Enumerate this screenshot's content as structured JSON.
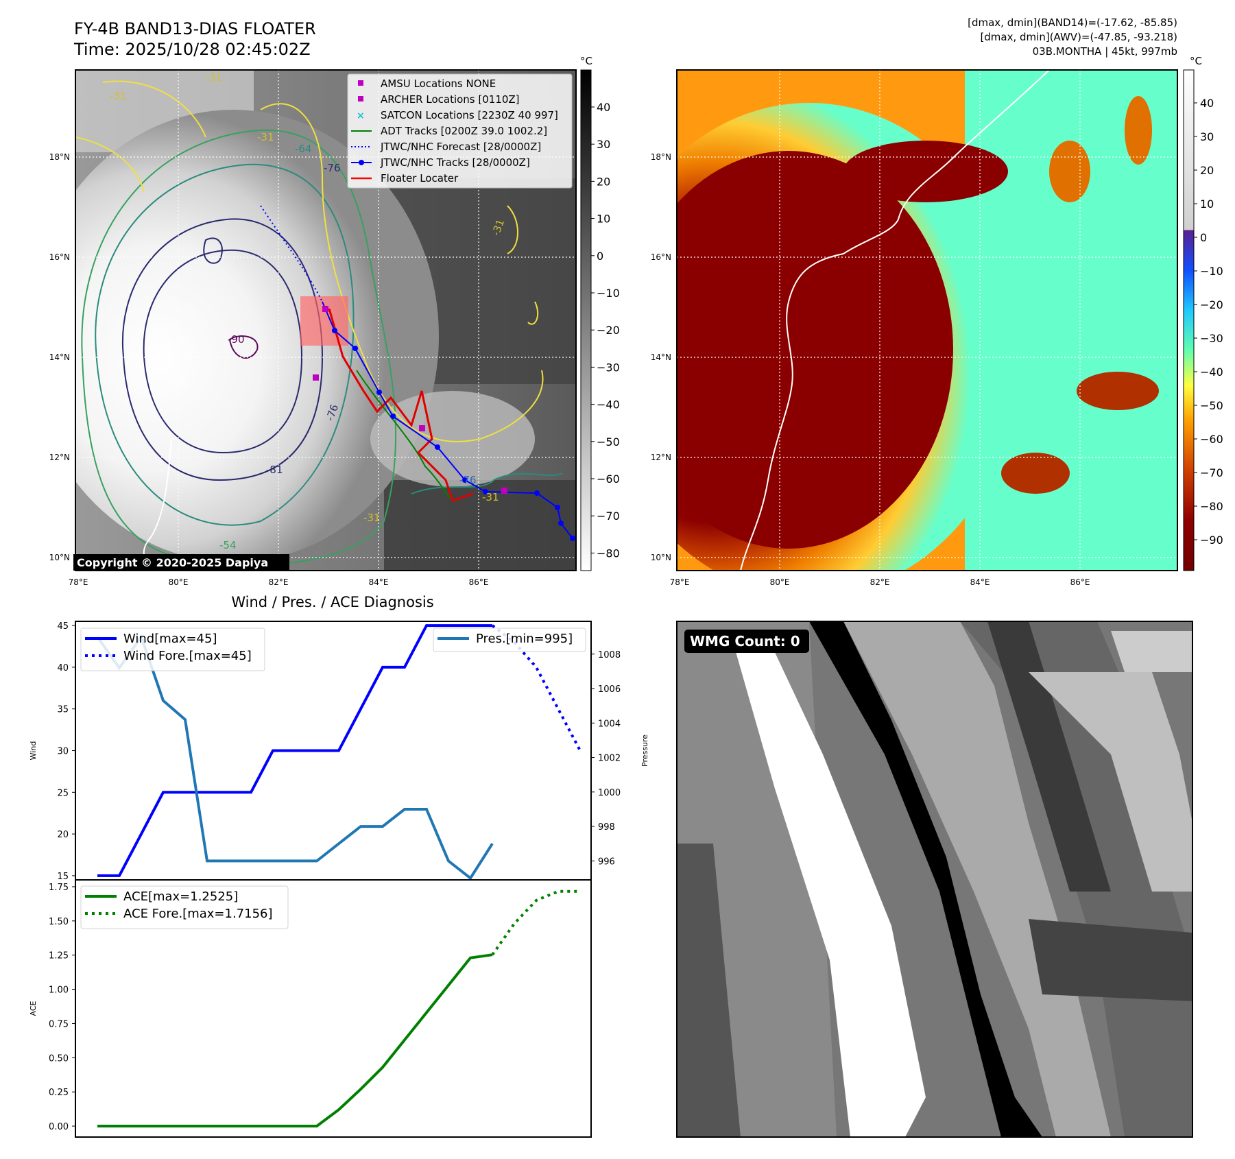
{
  "header": {
    "title_line1": "FY-4B BAND13-DIAS FLOATER",
    "title_line2": "Time: 2025/10/28 02:45:02Z",
    "info_line1": "[dmax, dmin](BAND14)=(-17.62, -85.85)",
    "info_line2": "[dmax, dmin](AWV)=(-47.85, -93.218)",
    "info_line3": "03B.MONTHA | 45kt, 997mb"
  },
  "copyright": "Copyright © 2020-2025 Dapiya",
  "map_left": {
    "lon_ticks": [
      "78°E",
      "80°E",
      "82°E",
      "84°E",
      "86°E"
    ],
    "lat_ticks": [
      "18°N",
      "16°N",
      "14°N",
      "12°N",
      "10°N"
    ],
    "contour_labels": [
      "-31",
      "-31",
      "-31",
      "-64",
      "-76",
      "-90",
      "-76",
      "-81",
      "-54",
      "-31",
      "-31",
      "-31",
      "-76"
    ],
    "colorbar": {
      "unit": "°C",
      "ticks": [
        "40",
        "30",
        "20",
        "10",
        "0",
        "−10",
        "−20",
        "−30",
        "−40",
        "−50",
        "−60",
        "−70",
        "−80"
      ]
    },
    "legend": [
      {
        "label": "AMSU Locations NONE",
        "color": "#c000c0",
        "marker": "square"
      },
      {
        "label": "ARCHER Locations [0110Z]",
        "color": "#c000c0",
        "marker": "square"
      },
      {
        "label": "SATCON Locations [2230Z 40 997]",
        "color": "#17becf",
        "marker": "x"
      },
      {
        "label": "ADT Tracks [0200Z 39.0 1002.2]",
        "color": "#008000",
        "marker": "line"
      },
      {
        "label": "JTWC/NHC Forecast [28/0000Z]",
        "color": "#0000ff",
        "marker": "dotted"
      },
      {
        "label": "JTWC/NHC Tracks [28/0000Z]",
        "color": "#0000ff",
        "marker": "line-dot"
      },
      {
        "label": "Floater Locater",
        "color": "#ff0000",
        "marker": "line"
      }
    ]
  },
  "map_right": {
    "lon_ticks": [
      "78°E",
      "80°E",
      "82°E",
      "84°E",
      "86°E"
    ],
    "lat_ticks": [
      "18°N",
      "16°N",
      "14°N",
      "12°N",
      "10°N"
    ],
    "colorbar": {
      "unit": "°C",
      "ticks": [
        "40",
        "30",
        "20",
        "10",
        "0",
        "−10",
        "−20",
        "−30",
        "−40",
        "−50",
        "−60",
        "−70",
        "−80",
        "−90"
      ]
    }
  },
  "wmg": {
    "label": "WMG Count: 0"
  },
  "chart_data": [
    {
      "type": "line",
      "title": "Wind / Pres. / ACE Diagnosis",
      "ylabel": "Wind",
      "y2label": "Pressure",
      "ylim": [
        14.5,
        45.5
      ],
      "y2lim": [
        994.9,
        1009.9
      ],
      "yticks": [
        15,
        20,
        25,
        30,
        35,
        40,
        45
      ],
      "y2ticks": [
        996,
        998,
        1000,
        1002,
        1004,
        1006,
        1008
      ],
      "x": [
        0,
        1,
        2,
        3,
        4,
        5,
        6,
        7,
        8,
        9,
        10,
        11,
        12,
        13,
        14,
        15,
        16,
        17,
        18,
        19,
        20,
        21,
        22
      ],
      "series": [
        {
          "name": "Wind[max=45]",
          "axis": "left",
          "color": "#0000ff",
          "style": "solid",
          "x": [
            0,
            1,
            2,
            3,
            4,
            5,
            6,
            7,
            8,
            9,
            10,
            11,
            12,
            13,
            14,
            15,
            16,
            17,
            18
          ],
          "values": [
            15,
            15,
            20,
            25,
            25,
            25,
            25,
            25,
            30,
            30,
            30,
            30,
            35,
            40,
            40,
            45,
            45,
            45,
            45
          ]
        },
        {
          "name": "Wind Fore.[max=45]",
          "axis": "left",
          "color": "#0000ff",
          "style": "dotted",
          "x": [
            18,
            19,
            20,
            21,
            22
          ],
          "values": [
            45,
            43,
            40,
            35,
            30
          ]
        },
        {
          "name": "Pres.[min=995]",
          "axis": "right",
          "color": "#1f77b4",
          "style": "solid",
          "x": [
            0,
            1,
            2,
            3,
            4,
            5,
            6,
            7,
            8,
            9,
            10,
            11,
            12,
            13,
            14,
            15,
            16,
            17,
            18
          ],
          "values": [
            1009,
            1007.2,
            1009,
            1005.3,
            1004.2,
            996,
            996,
            996,
            996,
            996,
            996,
            997,
            998,
            998,
            999,
            999,
            996,
            995,
            997
          ]
        }
      ]
    },
    {
      "type": "line",
      "ylabel": "ACE",
      "ylim": [
        -0.08,
        1.8
      ],
      "yticks": [
        0.0,
        0.25,
        0.5,
        0.75,
        1.0,
        1.25,
        1.5,
        1.75
      ],
      "series": [
        {
          "name": "ACE[max=1.2525]",
          "color": "#008000",
          "style": "solid",
          "x": [
            0,
            1,
            2,
            3,
            4,
            5,
            6,
            7,
            8,
            9,
            10,
            11,
            12,
            13,
            14,
            15,
            16,
            17,
            18
          ],
          "values": [
            0,
            0,
            0,
            0,
            0,
            0,
            0,
            0,
            0,
            0,
            0,
            0.12,
            0.27,
            0.43,
            0.63,
            0.83,
            1.03,
            1.23,
            1.2525
          ]
        },
        {
          "name": "ACE Fore.[max=1.7156]",
          "color": "#008000",
          "style": "dotted",
          "x": [
            18,
            19,
            20,
            21,
            22
          ],
          "values": [
            1.2525,
            1.48,
            1.65,
            1.7156,
            1.7156
          ]
        }
      ]
    }
  ]
}
